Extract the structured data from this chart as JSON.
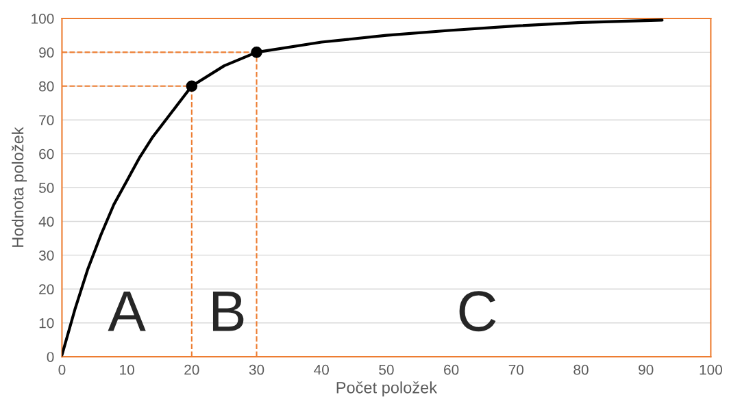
{
  "chart_data": {
    "type": "line",
    "xlabel": "Počet položek",
    "ylabel": "Hodnota položek",
    "xlim": [
      0,
      100
    ],
    "ylim": [
      0,
      100
    ],
    "xticks": [
      0,
      10,
      20,
      30,
      40,
      50,
      60,
      70,
      80,
      90,
      100
    ],
    "yticks": [
      0,
      10,
      20,
      30,
      40,
      50,
      60,
      70,
      80,
      90,
      100
    ],
    "grid": "y",
    "legend": false,
    "series": [
      {
        "color": "#000000",
        "marker": "none",
        "x": [
          0,
          2,
          4,
          6,
          8,
          10,
          12,
          14,
          16,
          18,
          20,
          25,
          30,
          40,
          50,
          60,
          70,
          80,
          92.5
        ],
        "values": [
          0.5,
          14,
          26,
          36,
          45,
          52,
          59,
          65,
          70,
          75,
          80,
          86,
          90,
          93,
          95,
          96.5,
          97.8,
          98.8,
          99.5
        ]
      },
      {
        "type": "scatter",
        "color": "#000000",
        "marker": "circle",
        "x": [
          20,
          30
        ],
        "values": [
          80,
          90
        ]
      }
    ],
    "ref_lines": [
      {
        "axis": "x",
        "value": 20,
        "color": "#ed7d31",
        "line_style": "dashed"
      },
      {
        "axis": "x",
        "value": 30,
        "color": "#ed7d31",
        "line_style": "dashed"
      },
      {
        "axis": "y",
        "value": 80,
        "color": "#ed7d31",
        "line_style": "dashed"
      },
      {
        "axis": "y",
        "value": 90,
        "color": "#ed7d31",
        "line_style": "dashed"
      }
    ],
    "annotations": [
      "A",
      "B",
      "C"
    ]
  }
}
